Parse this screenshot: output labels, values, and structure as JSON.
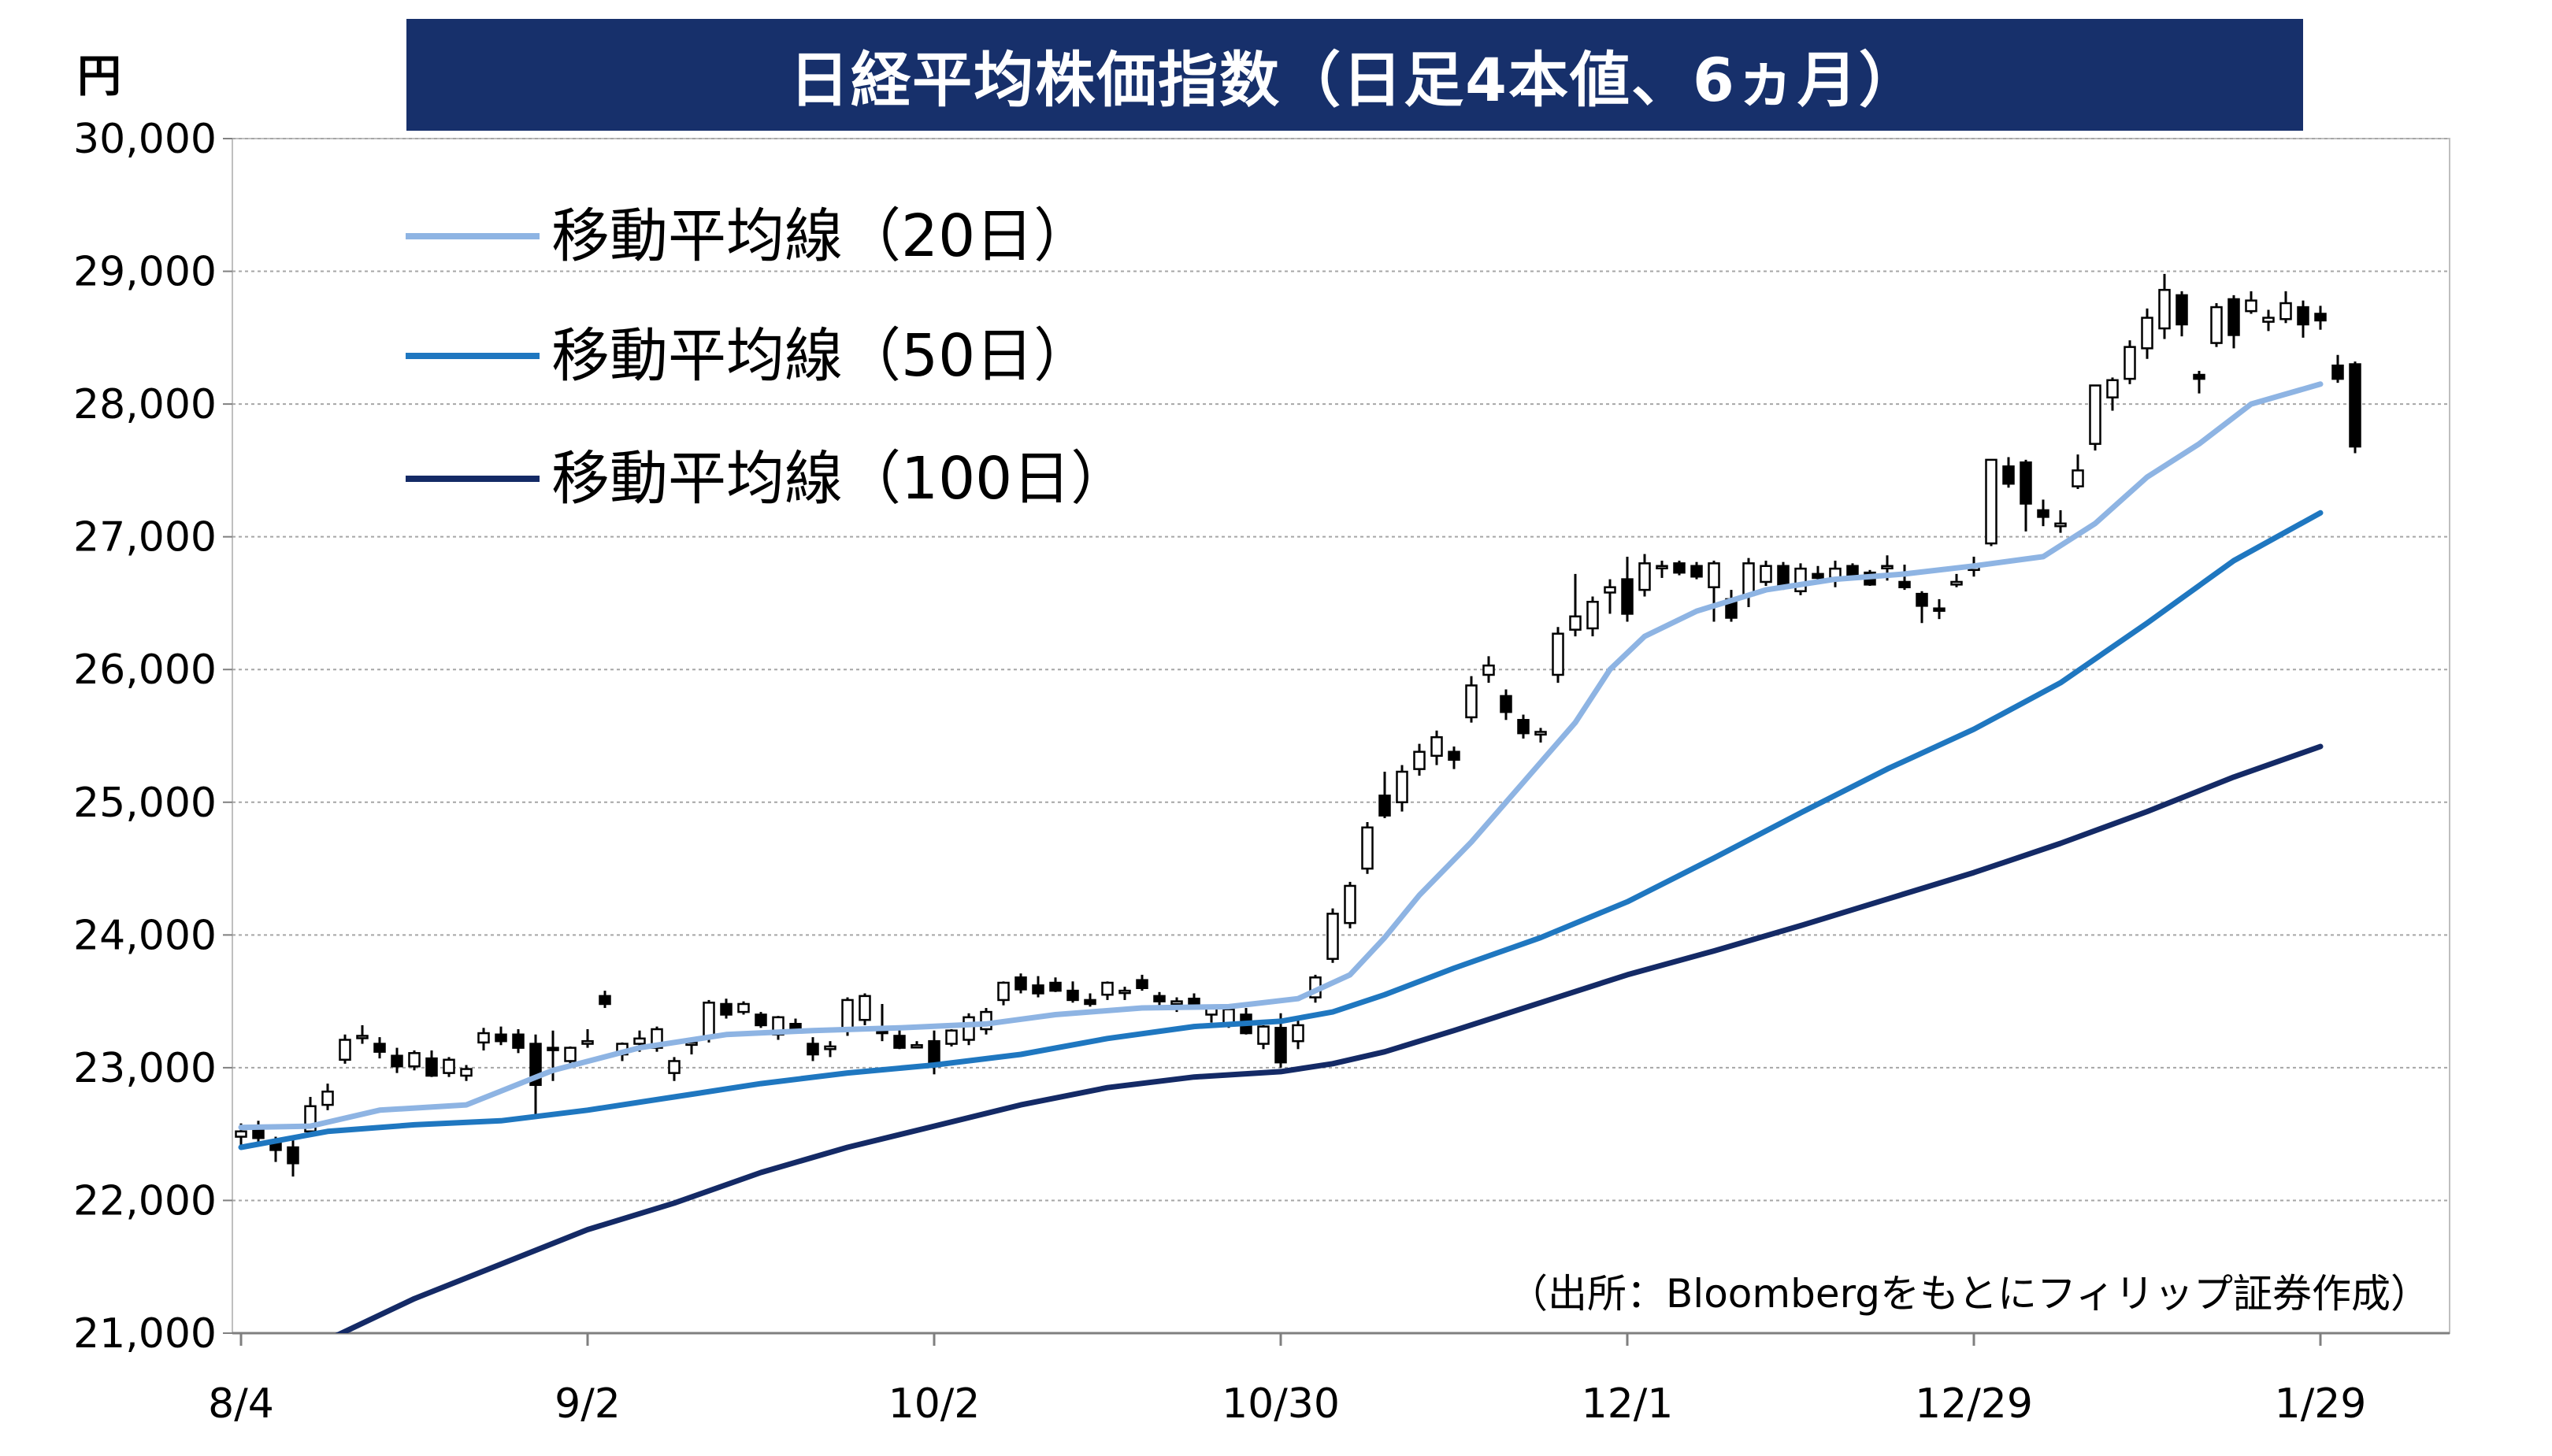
{
  "chart_data": {
    "type": "candlestick",
    "title": "日経平均株価指数（日足4本値、6ヵ月）",
    "unit": "円",
    "source_note": "（出所：Bloombergをもとにフィリップ証券作成）",
    "ylim": [
      21000,
      30000
    ],
    "yticks": [
      21000,
      22000,
      23000,
      24000,
      25000,
      26000,
      27000,
      28000,
      29000,
      30000
    ],
    "ytick_labels": [
      "21,000",
      "22,000",
      "23,000",
      "24,000",
      "25,000",
      "26,000",
      "27,000",
      "28,000",
      "29,000",
      "30,000"
    ],
    "xtick_labels": [
      "8/4",
      "9/2",
      "10/2",
      "10/30",
      "12/1",
      "12/29",
      "1/29"
    ],
    "xtick_positions": [
      0,
      20,
      40,
      60,
      80,
      100,
      120
    ],
    "grid": true,
    "legend_placement": "top-left",
    "colors": {
      "ma20": "#8eb4e3",
      "ma50": "#1f77c0",
      "ma100": "#142a66",
      "up_fill": "#ffffff",
      "down_fill": "#000000",
      "candle_stroke": "#000000",
      "title_bg": "#17306b"
    },
    "series": [
      {
        "name": "移動平均線（20日）",
        "key": "ma20",
        "x": [
          0,
          4,
          8,
          13,
          18,
          23,
          28,
          33,
          38,
          43,
          47,
          52,
          57,
          61,
          64,
          66,
          68,
          71,
          74,
          77,
          79,
          81,
          84,
          88,
          92,
          96,
          100,
          104,
          107,
          110,
          113,
          116,
          120
        ],
        "values": [
          22550,
          22560,
          22680,
          22720,
          22980,
          23150,
          23250,
          23280,
          23300,
          23330,
          23400,
          23450,
          23460,
          23520,
          23700,
          23980,
          24300,
          24700,
          25150,
          25600,
          26000,
          26250,
          26440,
          26600,
          26680,
          26720,
          26780,
          26850,
          27100,
          27450,
          27700,
          28000,
          28150
        ]
      },
      {
        "name": "移動平均線（50日）",
        "key": "ma50",
        "x": [
          0,
          5,
          10,
          15,
          20,
          25,
          30,
          35,
          40,
          45,
          50,
          55,
          60,
          63,
          66,
          70,
          75,
          80,
          85,
          90,
          95,
          100,
          105,
          110,
          115,
          120
        ],
        "values": [
          22400,
          22520,
          22570,
          22600,
          22680,
          22780,
          22880,
          22960,
          23020,
          23100,
          23220,
          23310,
          23350,
          23420,
          23550,
          23750,
          23980,
          24250,
          24580,
          24920,
          25250,
          25550,
          25900,
          26350,
          26820,
          27180
        ]
      },
      {
        "name": "移動平均線（100日）",
        "key": "ma100",
        "x": [
          5,
          10,
          15,
          20,
          25,
          30,
          35,
          40,
          45,
          50,
          55,
          60,
          63,
          66,
          70,
          75,
          80,
          85,
          90,
          95,
          100,
          105,
          110,
          115,
          120
        ],
        "values": [
          20950,
          21260,
          21520,
          21780,
          21980,
          22210,
          22400,
          22560,
          22720,
          22850,
          22930,
          22970,
          23030,
          23120,
          23280,
          23490,
          23700,
          23880,
          24070,
          24270,
          24470,
          24690,
          24930,
          25190,
          25420
        ]
      }
    ],
    "ohlc": [
      [
        0,
        22480,
        22580,
        22390,
        22520
      ],
      [
        1,
        22540,
        22600,
        22430,
        22470
      ],
      [
        2,
        22430,
        22480,
        22290,
        22380
      ],
      [
        3,
        22400,
        22460,
        22180,
        22280
      ],
      [
        4,
        22520,
        22780,
        22490,
        22710
      ],
      [
        5,
        22720,
        22880,
        22680,
        22820
      ],
      [
        6,
        23060,
        23250,
        23030,
        23210
      ],
      [
        7,
        23230,
        23320,
        23180,
        23240
      ],
      [
        8,
        23180,
        23230,
        23070,
        23120
      ],
      [
        9,
        23090,
        23150,
        22960,
        23010
      ],
      [
        10,
        23010,
        23130,
        22980,
        23110
      ],
      [
        11,
        23070,
        23130,
        22930,
        22940
      ],
      [
        12,
        22960,
        23080,
        22930,
        23060
      ],
      [
        13,
        22940,
        23020,
        22900,
        22990
      ],
      [
        14,
        23190,
        23300,
        23130,
        23260
      ],
      [
        15,
        23250,
        23310,
        23170,
        23200
      ],
      [
        16,
        23250,
        23290,
        23110,
        23150
      ],
      [
        17,
        23180,
        23250,
        22630,
        22870
      ],
      [
        18,
        23150,
        23280,
        22900,
        23140
      ],
      [
        19,
        23050,
        23160,
        23020,
        23150
      ],
      [
        20,
        23180,
        23290,
        23150,
        23200
      ],
      [
        21,
        23540,
        23580,
        23450,
        23480
      ],
      [
        22,
        23100,
        23190,
        23050,
        23180
      ],
      [
        23,
        23180,
        23280,
        23120,
        23220
      ],
      [
        24,
        23150,
        23310,
        23120,
        23290
      ],
      [
        25,
        22960,
        23080,
        22900,
        23050
      ],
      [
        26,
        23180,
        23210,
        23100,
        23190
      ],
      [
        27,
        23230,
        23510,
        23190,
        23490
      ],
      [
        28,
        23480,
        23520,
        23370,
        23400
      ],
      [
        29,
        23420,
        23500,
        23400,
        23480
      ],
      [
        30,
        23400,
        23420,
        23300,
        23320
      ],
      [
        31,
        23250,
        23390,
        23210,
        23380
      ],
      [
        32,
        23330,
        23370,
        23260,
        23270
      ],
      [
        33,
        23180,
        23230,
        23050,
        23100
      ],
      [
        34,
        23140,
        23200,
        23080,
        23160
      ],
      [
        35,
        23280,
        23530,
        23240,
        23510
      ],
      [
        36,
        23360,
        23560,
        23320,
        23540
      ],
      [
        37,
        23300,
        23480,
        23200,
        23260
      ],
      [
        38,
        23240,
        23300,
        23140,
        23150
      ],
      [
        39,
        23170,
        23200,
        23160,
        23170
      ],
      [
        40,
        23200,
        23280,
        22950,
        23010
      ],
      [
        41,
        23180,
        23290,
        23160,
        23280
      ],
      [
        42,
        23210,
        23410,
        23170,
        23380
      ],
      [
        43,
        23290,
        23450,
        23250,
        23420
      ],
      [
        44,
        23510,
        23650,
        23470,
        23640
      ],
      [
        45,
        23680,
        23710,
        23560,
        23590
      ],
      [
        46,
        23620,
        23690,
        23530,
        23560
      ],
      [
        47,
        23640,
        23680,
        23570,
        23580
      ],
      [
        48,
        23580,
        23650,
        23490,
        23510
      ],
      [
        49,
        23510,
        23560,
        23460,
        23480
      ],
      [
        50,
        23550,
        23650,
        23510,
        23640
      ],
      [
        51,
        23570,
        23610,
        23510,
        23580
      ],
      [
        52,
        23660,
        23700,
        23580,
        23600
      ],
      [
        53,
        23540,
        23570,
        23460,
        23500
      ],
      [
        54,
        23480,
        23530,
        23420,
        23500
      ],
      [
        55,
        23520,
        23560,
        23440,
        23470
      ],
      [
        56,
        23400,
        23470,
        23340,
        23450
      ],
      [
        57,
        23330,
        23460,
        23300,
        23440
      ],
      [
        58,
        23400,
        23450,
        23250,
        23260
      ],
      [
        59,
        23180,
        23320,
        23140,
        23310
      ],
      [
        60,
        23300,
        23410,
        23000,
        23040
      ],
      [
        61,
        23200,
        23370,
        23140,
        23320
      ],
      [
        62,
        23530,
        23700,
        23490,
        23680
      ],
      [
        63,
        23820,
        24200,
        23790,
        24160
      ],
      [
        64,
        24090,
        24400,
        24050,
        24370
      ],
      [
        65,
        24500,
        24850,
        24460,
        24810
      ],
      [
        66,
        25050,
        25230,
        24880,
        24900
      ],
      [
        67,
        25000,
        25280,
        24930,
        25230
      ],
      [
        68,
        25250,
        25440,
        25200,
        25380
      ],
      [
        69,
        25350,
        25540,
        25280,
        25490
      ],
      [
        70,
        25380,
        25420,
        25250,
        25320
      ],
      [
        71,
        25640,
        25950,
        25600,
        25880
      ],
      [
        72,
        25960,
        26100,
        25900,
        26030
      ],
      [
        73,
        25800,
        25850,
        25620,
        25680
      ],
      [
        74,
        25620,
        25660,
        25480,
        25520
      ],
      [
        75,
        25510,
        25560,
        25450,
        25530
      ],
      [
        76,
        25960,
        26320,
        25900,
        26270
      ],
      [
        77,
        26300,
        26720,
        26250,
        26400
      ],
      [
        78,
        26310,
        26550,
        26250,
        26510
      ],
      [
        79,
        26580,
        26680,
        26420,
        26620
      ],
      [
        80,
        26680,
        26850,
        26360,
        26420
      ],
      [
        81,
        26600,
        26870,
        26550,
        26800
      ],
      [
        82,
        26770,
        26820,
        26690,
        26780
      ],
      [
        83,
        26800,
        26820,
        26710,
        26730
      ],
      [
        84,
        26780,
        26810,
        26680,
        26700
      ],
      [
        85,
        26620,
        26820,
        26360,
        26800
      ],
      [
        86,
        26530,
        26600,
        26360,
        26390
      ],
      [
        87,
        26560,
        26840,
        26470,
        26800
      ],
      [
        88,
        26660,
        26820,
        26630,
        26780
      ],
      [
        89,
        26780,
        26810,
        26600,
        26640
      ],
      [
        90,
        26590,
        26800,
        26560,
        26760
      ],
      [
        91,
        26720,
        26780,
        26650,
        26690
      ],
      [
        92,
        26690,
        26820,
        26620,
        26760
      ],
      [
        93,
        26780,
        26800,
        26680,
        26700
      ],
      [
        94,
        26730,
        26750,
        26630,
        26640
      ],
      [
        95,
        26770,
        26860,
        26670,
        26780
      ],
      [
        96,
        26660,
        26790,
        26600,
        26620
      ],
      [
        97,
        26570,
        26590,
        26350,
        26480
      ],
      [
        98,
        26460,
        26530,
        26380,
        26450
      ],
      [
        99,
        26640,
        26720,
        26620,
        26660
      ],
      [
        100,
        26750,
        26850,
        26700,
        26780
      ],
      [
        101,
        26950,
        27580,
        26930,
        27580
      ],
      [
        102,
        27530,
        27600,
        27370,
        27400
      ],
      [
        103,
        27560,
        27580,
        27040,
        27250
      ],
      [
        104,
        27200,
        27280,
        27080,
        27150
      ],
      [
        105,
        27080,
        27200,
        27030,
        27100
      ],
      [
        106,
        27380,
        27620,
        27360,
        27500
      ],
      [
        107,
        27700,
        28140,
        27650,
        28140
      ],
      [
        108,
        28050,
        28200,
        27950,
        28180
      ],
      [
        109,
        28190,
        28480,
        28150,
        28430
      ],
      [
        110,
        28420,
        28720,
        28340,
        28650
      ],
      [
        111,
        28570,
        28980,
        28490,
        28860
      ],
      [
        112,
        28820,
        28850,
        28510,
        28600
      ],
      [
        113,
        28220,
        28250,
        28080,
        28190
      ],
      [
        114,
        28460,
        28760,
        28430,
        28730
      ],
      [
        115,
        28790,
        28820,
        28420,
        28520
      ],
      [
        116,
        28700,
        28850,
        28680,
        28780
      ],
      [
        117,
        28620,
        28710,
        28550,
        28650
      ],
      [
        118,
        28640,
        28850,
        28610,
        28760
      ],
      [
        119,
        28730,
        28780,
        28500,
        28600
      ],
      [
        120,
        28680,
        28740,
        28560,
        28630
      ],
      [
        121,
        28290,
        28370,
        28160,
        28190
      ],
      [
        122,
        28300,
        28320,
        27630,
        27680
      ]
    ]
  }
}
